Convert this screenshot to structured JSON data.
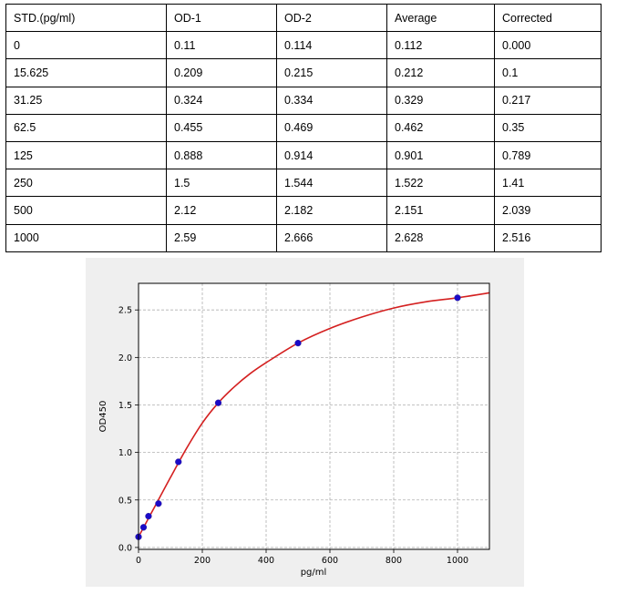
{
  "table": {
    "headers": [
      "STD.(pg/ml)",
      "OD-1",
      "OD-2",
      "Average",
      "Corrected"
    ],
    "rows": [
      [
        "0",
        "0.11",
        "0.114",
        "0.112",
        "0.000"
      ],
      [
        "15.625",
        "0.209",
        "0.215",
        "0.212",
        "0.1"
      ],
      [
        "31.25",
        "0.324",
        "0.334",
        "0.329",
        "0.217"
      ],
      [
        "62.5",
        "0.455",
        "0.469",
        "0.462",
        "0.35"
      ],
      [
        "125",
        "0.888",
        "0.914",
        "0.901",
        "0.789"
      ],
      [
        "250",
        "1.5",
        "1.544",
        "1.522",
        "1.41"
      ],
      [
        "500",
        "2.12",
        "2.182",
        "2.151",
        "2.039"
      ],
      [
        "1000",
        "2.59",
        "2.666",
        "2.628",
        "2.516"
      ]
    ]
  },
  "chart_data": {
    "type": "scatter",
    "xlabel": "pg/ml",
    "ylabel": "OD450",
    "xlim": [
      0,
      1100
    ],
    "ylim": [
      -0.02,
      2.78
    ],
    "xticks": [
      0,
      200,
      400,
      600,
      800,
      1000
    ],
    "yticks": [
      0.0,
      0.5,
      1.0,
      1.5,
      2.0,
      2.5
    ],
    "xtick_labels": [
      "0",
      "200",
      "400",
      "600",
      "800",
      "1000"
    ],
    "ytick_labels": [
      "0.0",
      "0.5",
      "1.0",
      "1.5",
      "2.0",
      "2.5"
    ],
    "grid": true,
    "points": {
      "x": [
        0,
        15.625,
        31.25,
        62.5,
        125,
        250,
        500,
        1000
      ],
      "y": [
        0.112,
        0.212,
        0.329,
        0.462,
        0.901,
        1.522,
        2.151,
        2.628
      ],
      "color": "#1a0ac8"
    },
    "fit_curve": {
      "color": "#d42020",
      "x": [
        0,
        25,
        50,
        75,
        100,
        150,
        200,
        250,
        300,
        350,
        400,
        500,
        600,
        700,
        800,
        900,
        1000,
        1100
      ],
      "y": [
        0.112,
        0.268,
        0.424,
        0.58,
        0.736,
        1.04,
        1.31,
        1.522,
        1.69,
        1.83,
        1.945,
        2.151,
        2.305,
        2.425,
        2.52,
        2.585,
        2.628,
        2.68
      ]
    }
  }
}
